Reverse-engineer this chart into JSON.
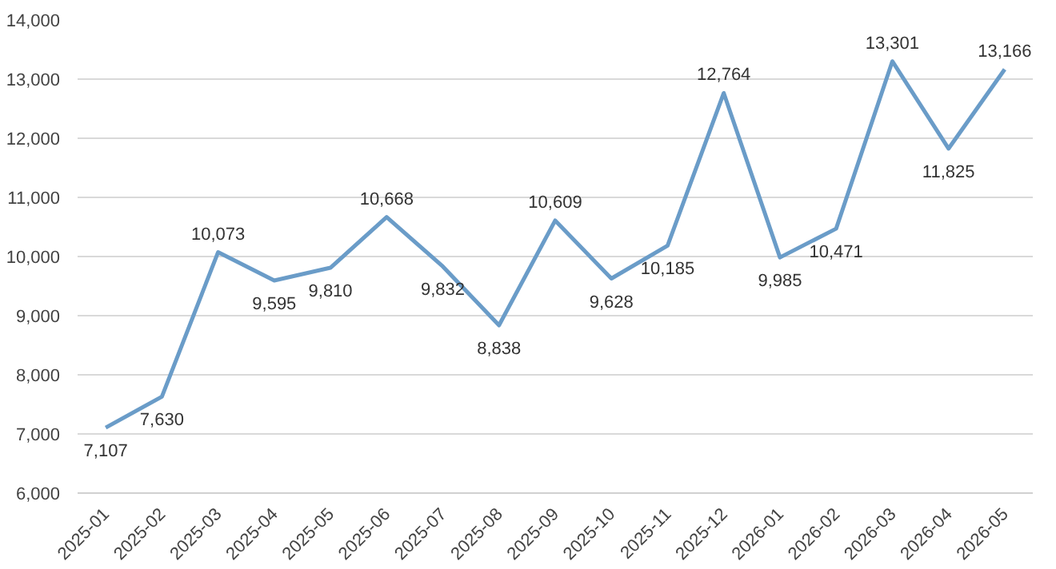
{
  "chart_data": {
    "type": "line",
    "categories": [
      "2025-01",
      "2025-02",
      "2025-03",
      "2025-04",
      "2025-05",
      "2025-06",
      "2025-07",
      "2025-08",
      "2025-09",
      "2025-10",
      "2025-11",
      "2025-12",
      "2026-01",
      "2026-02",
      "2026-03",
      "2026-04",
      "2026-05"
    ],
    "series": [
      {
        "color": "#6a9cc8",
        "values": [
          7107,
          7630,
          10073,
          9595,
          9810,
          10668,
          9832,
          8838,
          10609,
          9628,
          10185,
          12764,
          9985,
          10471,
          13301,
          11825,
          13166
        ]
      }
    ],
    "ylim": [
      6000,
      14000
    ],
    "yticks": [
      {
        "value": 6000,
        "label": "6,000"
      },
      {
        "value": 7000,
        "label": "7,000"
      },
      {
        "value": 8000,
        "label": "8,000"
      },
      {
        "value": 9000,
        "label": "9,000"
      },
      {
        "value": 10000,
        "label": "10,000"
      },
      {
        "value": 11000,
        "label": "11,000"
      },
      {
        "value": 12000,
        "label": "12,000"
      },
      {
        "value": 13000,
        "label": "13,000"
      },
      {
        "value": 14000,
        "label": "14,000"
      }
    ],
    "value_labels": [
      "7,107",
      "7,630",
      "10,073",
      "9,595",
      "9,810",
      "10,668",
      "9,832",
      "8,838",
      "10,609",
      "9,628",
      "10,185",
      "12,764",
      "9,985",
      "10,471",
      "13,301",
      "11,825",
      "13,166"
    ],
    "grid": "y",
    "marker": "none",
    "line_style": "solid"
  }
}
